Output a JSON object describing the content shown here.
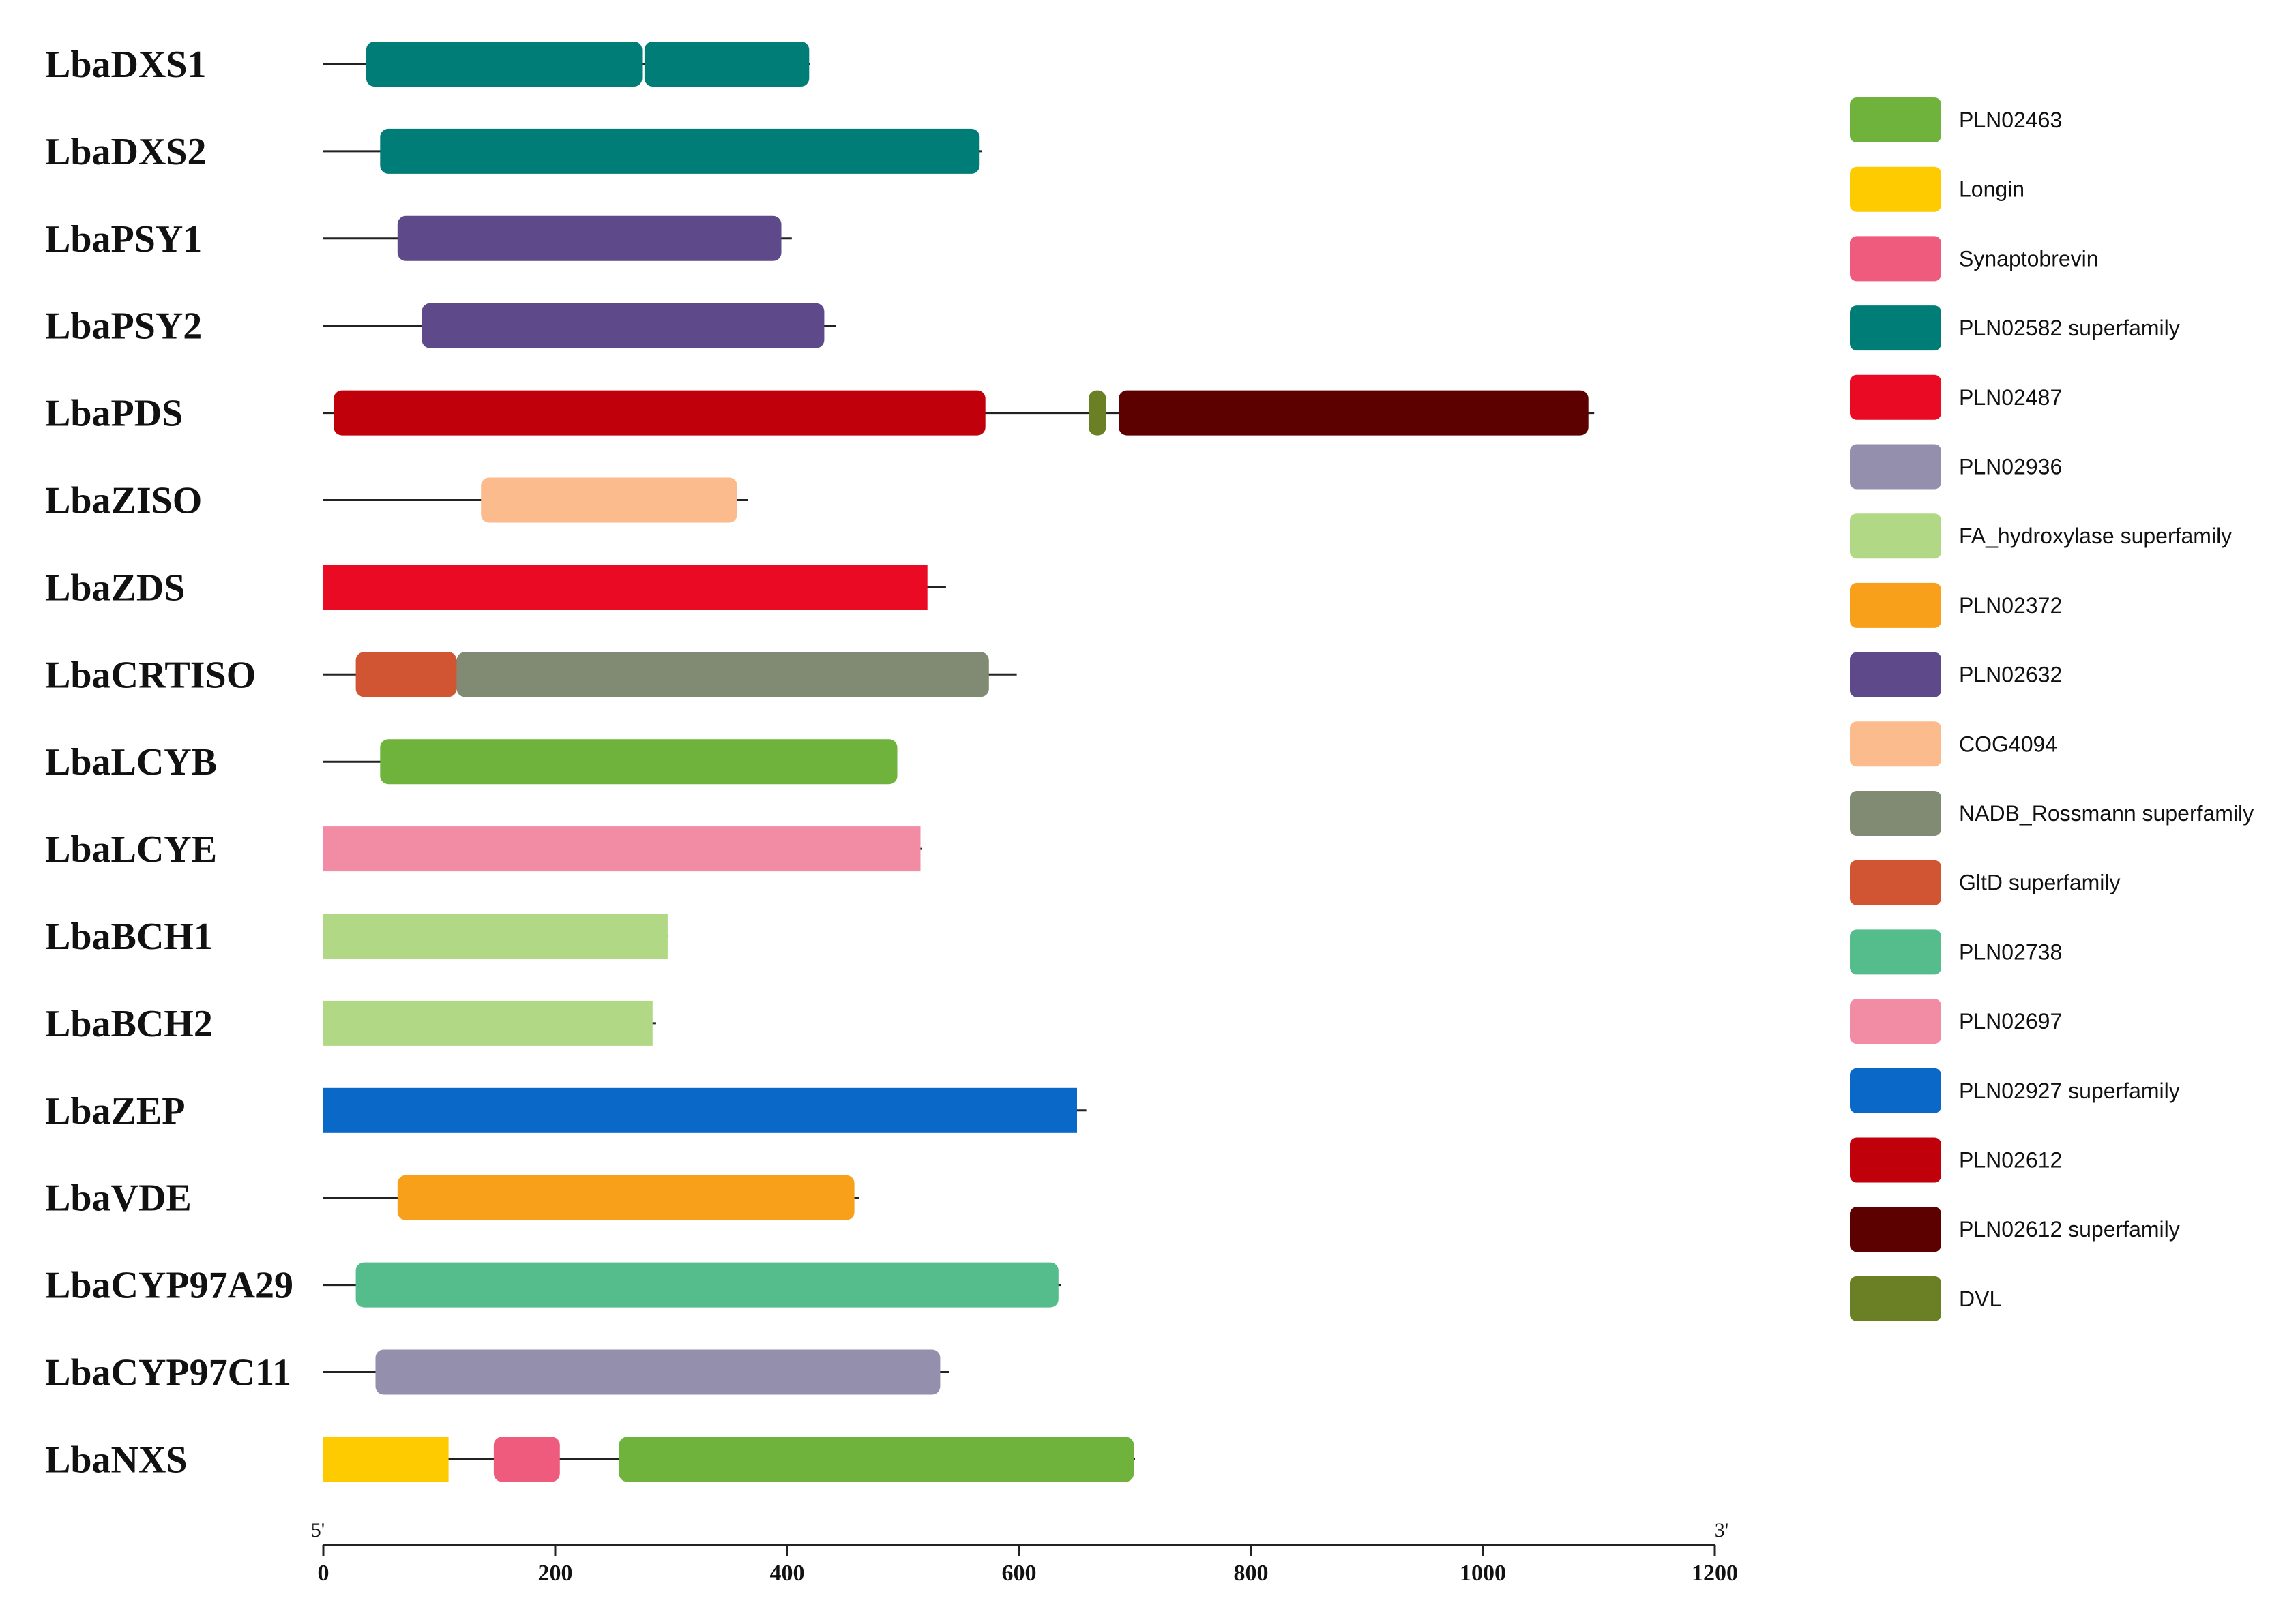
{
  "legend": [
    {
      "key": "PLN02463",
      "label": "PLN02463",
      "color": "#6fb33d"
    },
    {
      "key": "Longin",
      "label": "Longin",
      "color": "#fdcb00"
    },
    {
      "key": "Synaptobrevin",
      "label": "Synaptobrevin",
      "color": "#ef5b7d"
    },
    {
      "key": "PLN02582 superfamily",
      "label": "PLN02582 superfamily",
      "color": "#007d77"
    },
    {
      "key": "PLN02487",
      "label": "PLN02487",
      "color": "#eb0a24"
    },
    {
      "key": "PLN02936",
      "label": "PLN02936",
      "color": "#938fad"
    },
    {
      "key": "FA_hydroxylase superfamily",
      "label": "FA_hydroxylase superfamily",
      "color": "#b0d885"
    },
    {
      "key": "PLN02372",
      "label": "PLN02372",
      "color": "#f8a01a"
    },
    {
      "key": "PLN02632",
      "label": "PLN02632",
      "color": "#5e4a8a"
    },
    {
      "key": "COG4094",
      "label": "COG4094",
      "color": "#fbbb8c"
    },
    {
      "key": "NADB_Rossmann superfamily",
      "label": "NADB_Rossmann superfamily",
      "color": "#818a72"
    },
    {
      "key": "GltD superfamily",
      "label": "GltD superfamily",
      "color": "#d15533"
    },
    {
      "key": "PLN02738",
      "label": "PLN02738",
      "color": "#54bd8b"
    },
    {
      "key": "PLN02697",
      "label": "PLN02697",
      "color": "#f28ca5"
    },
    {
      "key": "PLN02927 superfamily",
      "label": "PLN02927 superfamily",
      "color": "#0a69c8"
    },
    {
      "key": "PLN02612",
      "label": "PLN02612",
      "color": "#c0010c"
    },
    {
      "key": "PLN02612 superfamily",
      "label": "PLN02612 superfamily",
      "color": "#5c0000"
    },
    {
      "key": "DVL",
      "label": "DVL",
      "color": "#6b7f25"
    }
  ],
  "proteins": [
    {
      "name": "LbaDXS1",
      "length": 420,
      "domains": [
        {
          "start": 37,
          "end": 275,
          "type": "PLN02582 superfamily"
        },
        {
          "start": 277,
          "end": 419,
          "type": "PLN02582 superfamily"
        }
      ]
    },
    {
      "name": "LbaDXS2",
      "length": 568,
      "domains": [
        {
          "start": 49,
          "end": 566,
          "type": "PLN02582 superfamily"
        }
      ]
    },
    {
      "name": "LbaPSY1",
      "length": 404,
      "domains": [
        {
          "start": 64,
          "end": 395,
          "type": "PLN02632"
        }
      ]
    },
    {
      "name": "LbaPSY2",
      "length": 442,
      "domains": [
        {
          "start": 85,
          "end": 432,
          "type": "PLN02632"
        }
      ]
    },
    {
      "name": "LbaPDS",
      "length": 1096,
      "domains": [
        {
          "start": 9,
          "end": 571,
          "type": "PLN02612"
        },
        {
          "start": 660,
          "end": 675,
          "type": "DVL"
        },
        {
          "start": 686,
          "end": 1091,
          "type": "PLN02612 superfamily"
        }
      ]
    },
    {
      "name": "LbaZISO",
      "length": 366,
      "domains": [
        {
          "start": 136,
          "end": 357,
          "type": "COG4094"
        }
      ]
    },
    {
      "name": "LbaZDS",
      "length": 537,
      "domains": [
        {
          "start": 0,
          "end": 521,
          "type": "PLN02487"
        }
      ]
    },
    {
      "name": "LbaCRTISO",
      "length": 598,
      "domains": [
        {
          "start": 28,
          "end": 115,
          "type": "GltD superfamily"
        },
        {
          "start": 115,
          "end": 574,
          "type": "NADB_Rossmann superfamily"
        }
      ]
    },
    {
      "name": "LbaLCYB",
      "length": 495,
      "domains": [
        {
          "start": 49,
          "end": 495,
          "type": "PLN02463"
        }
      ]
    },
    {
      "name": "LbaLCYE",
      "length": 516,
      "domains": [
        {
          "start": 0,
          "end": 515,
          "type": "PLN02697"
        }
      ]
    },
    {
      "name": "LbaBCH1",
      "length": 297,
      "domains": [
        {
          "start": 0,
          "end": 297,
          "type": "FA_hydroxylase superfamily"
        }
      ]
    },
    {
      "name": "LbaBCH2",
      "length": 287,
      "domains": [
        {
          "start": 0,
          "end": 284,
          "type": "FA_hydroxylase superfamily"
        }
      ]
    },
    {
      "name": "LbaZEP",
      "length": 658,
      "domains": [
        {
          "start": 0,
          "end": 650,
          "type": "PLN02927 superfamily"
        }
      ]
    },
    {
      "name": "LbaVDE",
      "length": 462,
      "domains": [
        {
          "start": 64,
          "end": 458,
          "type": "PLN02372"
        }
      ]
    },
    {
      "name": "LbaCYP97A29",
      "length": 636,
      "domains": [
        {
          "start": 28,
          "end": 634,
          "type": "PLN02738"
        }
      ]
    },
    {
      "name": "LbaCYP97C11",
      "length": 540,
      "domains": [
        {
          "start": 45,
          "end": 532,
          "type": "PLN02936"
        }
      ]
    },
    {
      "name": "LbaNXS",
      "length": 700,
      "domains": [
        {
          "start": 0,
          "end": 108,
          "type": "Longin"
        },
        {
          "start": 147,
          "end": 204,
          "type": "Synaptobrevin"
        },
        {
          "start": 255,
          "end": 699,
          "type": "PLN02463"
        }
      ]
    }
  ],
  "axis": {
    "min": 0,
    "max": 1200,
    "ticks": [
      0,
      200,
      400,
      600,
      800,
      1000,
      1200
    ],
    "left_label": "5'",
    "right_label": "3'"
  }
}
